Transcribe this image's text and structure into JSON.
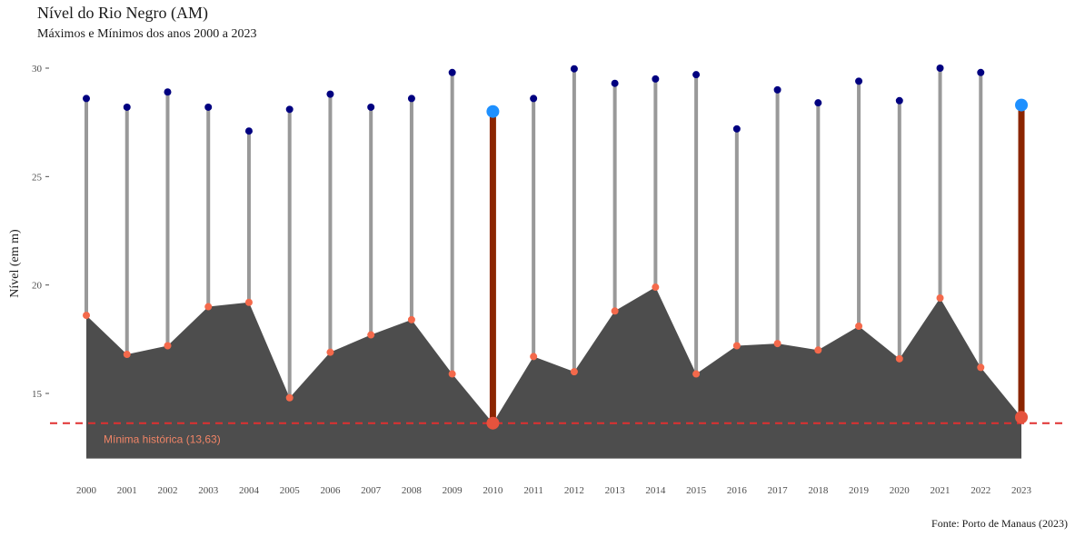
{
  "chart_data": {
    "type": "area",
    "title": "Nível do Rio Negro (AM)",
    "subtitle": "Máximos e Mínimos dos anos 2000 a 2023",
    "ylabel": "Nível (em m)",
    "caption": "Fonte: Porto de Manaus (2023)",
    "x": [
      "2000",
      "2001",
      "2002",
      "2003",
      "2004",
      "2005",
      "2006",
      "2007",
      "2008",
      "2009",
      "2010",
      "2011",
      "2012",
      "2013",
      "2014",
      "2015",
      "2016",
      "2017",
      "2018",
      "2019",
      "2020",
      "2021",
      "2022",
      "2023"
    ],
    "y_ticks": [
      15,
      20,
      25,
      30
    ],
    "ylim": [
      12,
      31
    ],
    "series": [
      {
        "values": [
          28.6,
          28.2,
          28.9,
          28.2,
          27.1,
          28.1,
          28.8,
          28.2,
          28.6,
          29.8,
          28.0,
          28.6,
          29.97,
          29.3,
          29.5,
          29.7,
          27.2,
          29.0,
          28.4,
          29.4,
          28.5,
          30.0,
          29.8,
          28.3
        ]
      },
      {
        "values": [
          18.6,
          16.8,
          17.2,
          19.0,
          19.2,
          14.8,
          16.9,
          17.7,
          18.4,
          15.9,
          13.63,
          16.7,
          16.0,
          18.8,
          19.9,
          15.9,
          17.2,
          17.3,
          17.0,
          18.1,
          16.6,
          19.4,
          16.2,
          13.9
        ]
      }
    ],
    "highlight_years": [
      "2010",
      "2023"
    ],
    "reference_line": {
      "value": 13.63,
      "label": "Mínima histórica (13,63)"
    },
    "colors": {
      "area": "#4d4d4d",
      "stem": "#999999",
      "stem_highlight": "#8b2500",
      "max_point": "#000080",
      "max_point_highlight": "#1e90ff",
      "min_point": "#f4694b",
      "min_point_highlight": "#e5533d",
      "reference_line": "#e03030",
      "annotation": "#f08466"
    }
  }
}
